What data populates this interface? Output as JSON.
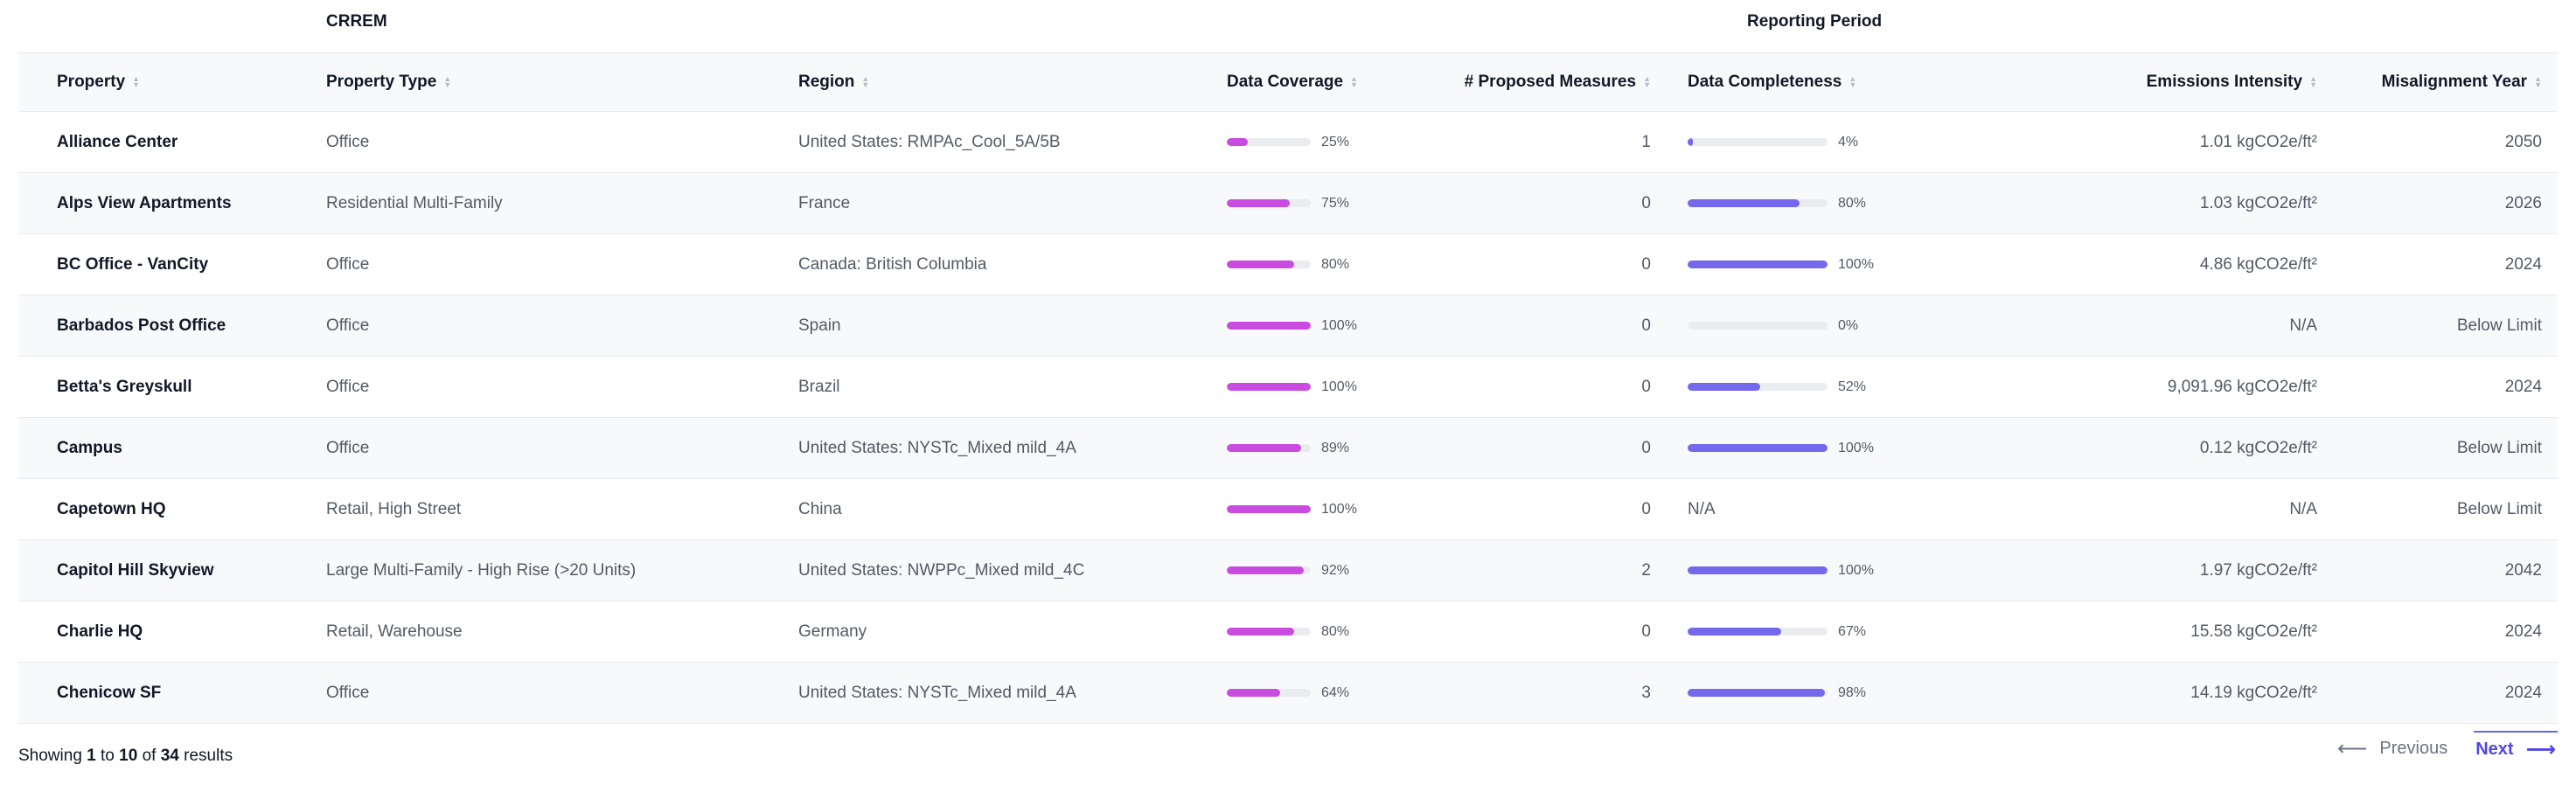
{
  "group_headers": {
    "left": "CRREM",
    "right": "Reporting Period"
  },
  "columns": {
    "property": "Property",
    "property_type": "Property Type",
    "region": "Region",
    "data_coverage": "Data Coverage",
    "proposed_measures": "# Proposed Measures",
    "data_completeness": "Data Completeness",
    "emissions_intensity": "Emissions Intensity",
    "misalignment_year": "Misalignment Year"
  },
  "icons": {
    "sort": "sort-icon",
    "prev_arrow": "arrow-left-icon",
    "next_arrow": "arrow-right-icon"
  },
  "colors": {
    "coverage_bar": "#c94be0",
    "completeness_bar": "#7468ec",
    "accent": "#4f46e5"
  },
  "rows": [
    {
      "property": "Alliance Center",
      "type": "Office",
      "region": "United States: RMPAc_Cool_5A/5B",
      "coverage": 25,
      "coverage_label": "25%",
      "measures": "1",
      "completeness": 4,
      "completeness_label": "4%",
      "intensity": "1.01 kgCO2e/ft²",
      "misalignment": "2050"
    },
    {
      "property": "Alps View Apartments",
      "type": "Residential Multi-Family",
      "region": "France",
      "coverage": 75,
      "coverage_label": "75%",
      "measures": "0",
      "completeness": 80,
      "completeness_label": "80%",
      "intensity": "1.03 kgCO2e/ft²",
      "misalignment": "2026"
    },
    {
      "property": "BC Office - VanCity",
      "type": "Office",
      "region": "Canada: British Columbia",
      "coverage": 80,
      "coverage_label": "80%",
      "measures": "0",
      "completeness": 100,
      "completeness_label": "100%",
      "intensity": "4.86 kgCO2e/ft²",
      "misalignment": "2024"
    },
    {
      "property": "Barbados Post Office",
      "type": "Office",
      "region": "Spain",
      "coverage": 100,
      "coverage_label": "100%",
      "measures": "0",
      "completeness": 0,
      "completeness_label": "0%",
      "intensity": "N/A",
      "misalignment": "Below Limit"
    },
    {
      "property": "Betta's Greyskull",
      "type": "Office",
      "region": "Brazil",
      "coverage": 100,
      "coverage_label": "100%",
      "measures": "0",
      "completeness": 52,
      "completeness_label": "52%",
      "intensity": "9,091.96 kgCO2e/ft²",
      "misalignment": "2024"
    },
    {
      "property": "Campus",
      "type": "Office",
      "region": "United States: NYSTc_Mixed mild_4A",
      "coverage": 89,
      "coverage_label": "89%",
      "measures": "0",
      "completeness": 100,
      "completeness_label": "100%",
      "intensity": "0.12 kgCO2e/ft²",
      "misalignment": "Below Limit"
    },
    {
      "property": "Capetown HQ",
      "type": "Retail, High Street",
      "region": "China",
      "coverage": 100,
      "coverage_label": "100%",
      "measures": "0",
      "completeness": null,
      "completeness_label": "N/A",
      "intensity": "N/A",
      "misalignment": "Below Limit"
    },
    {
      "property": "Capitol Hill Skyview",
      "type": "Large Multi-Family - High Rise (>20 Units)",
      "region": "United States: NWPPc_Mixed mild_4C",
      "coverage": 92,
      "coverage_label": "92%",
      "measures": "2",
      "completeness": 100,
      "completeness_label": "100%",
      "intensity": "1.97 kgCO2e/ft²",
      "misalignment": "2042"
    },
    {
      "property": "Charlie HQ",
      "type": "Retail, Warehouse",
      "region": "Germany",
      "coverage": 80,
      "coverage_label": "80%",
      "measures": "0",
      "completeness": 67,
      "completeness_label": "67%",
      "intensity": "15.58 kgCO2e/ft²",
      "misalignment": "2024"
    },
    {
      "property": "Chenicow SF",
      "type": "Office",
      "region": "United States: NYSTc_Mixed mild_4A",
      "coverage": 64,
      "coverage_label": "64%",
      "measures": "3",
      "completeness": 98,
      "completeness_label": "98%",
      "intensity": "14.19 kgCO2e/ft²",
      "misalignment": "2024"
    }
  ],
  "footer": {
    "showing_prefix": "Showing",
    "from": "1",
    "to_word": "to",
    "to": "10",
    "of_word": "of",
    "total": "34",
    "suffix": "results"
  },
  "pagination": {
    "previous": "Previous",
    "next": "Next"
  }
}
